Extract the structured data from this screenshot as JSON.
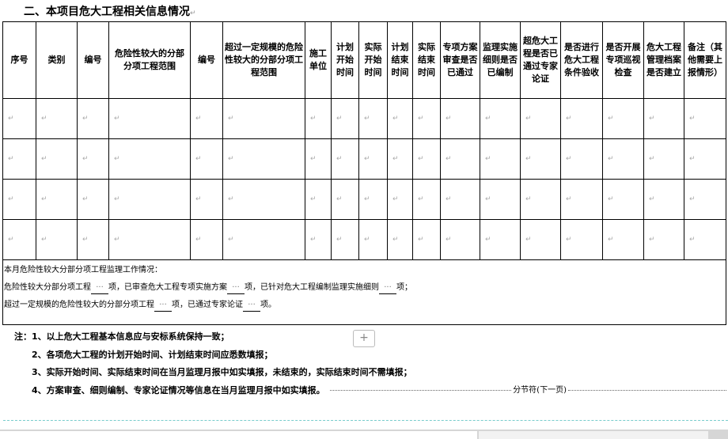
{
  "section_title": "二、本项目危大工程相关信息情况",
  "table": {
    "headers": [
      "序号",
      "类别",
      "编号",
      "危险性较大的分部分项工程范围",
      "编号",
      "超过一定规模的危险性较大的分部分项工程范围",
      "施工单位",
      "计划开始时间",
      "实际开始时间",
      "计划结束时间",
      "实际结束时间",
      "专项方案审查是否已通过",
      "监理实施细则是否已编制",
      "超危大工程是否已通过专家论证",
      "是否进行危大工程条件验收",
      "是否开展专项巡视检查",
      "危大工程管理档案是否建立",
      "备注（其他需要上报情形）"
    ],
    "row_count": 4,
    "summary": {
      "line1": "本月危险性较大分部分项工程监理工作情况：",
      "line2_a": "危险性较大分部分项工程",
      "line2_b": "项，已审查危大工程专项实施方案",
      "line2_c": "项，已针对危大工程编制监理实施细则",
      "line2_d": "项；",
      "line3_a": "超过一定规模的危险性较大的分部分项工程",
      "line3_b": "项，已通过专家论证",
      "line3_c": "项。",
      "blank": "···"
    }
  },
  "notes": [
    "注：1、以上危大工程基本信息应与安标系统保持一致；",
    "2、各项危大工程的计划开始时间、计划结束时间应悉数填报；",
    "3、实际开始时间、实际结束时间在当月监理月报中如实填报，未结束的，实际结束时间不需填报；",
    "4、方案审查、细则编制、专家论证情况等信息在当月监理月报中如实填报。"
  ],
  "section_break_label": "分节符(下一页)",
  "add_button_label": "+",
  "paragraph_mark": "↵"
}
